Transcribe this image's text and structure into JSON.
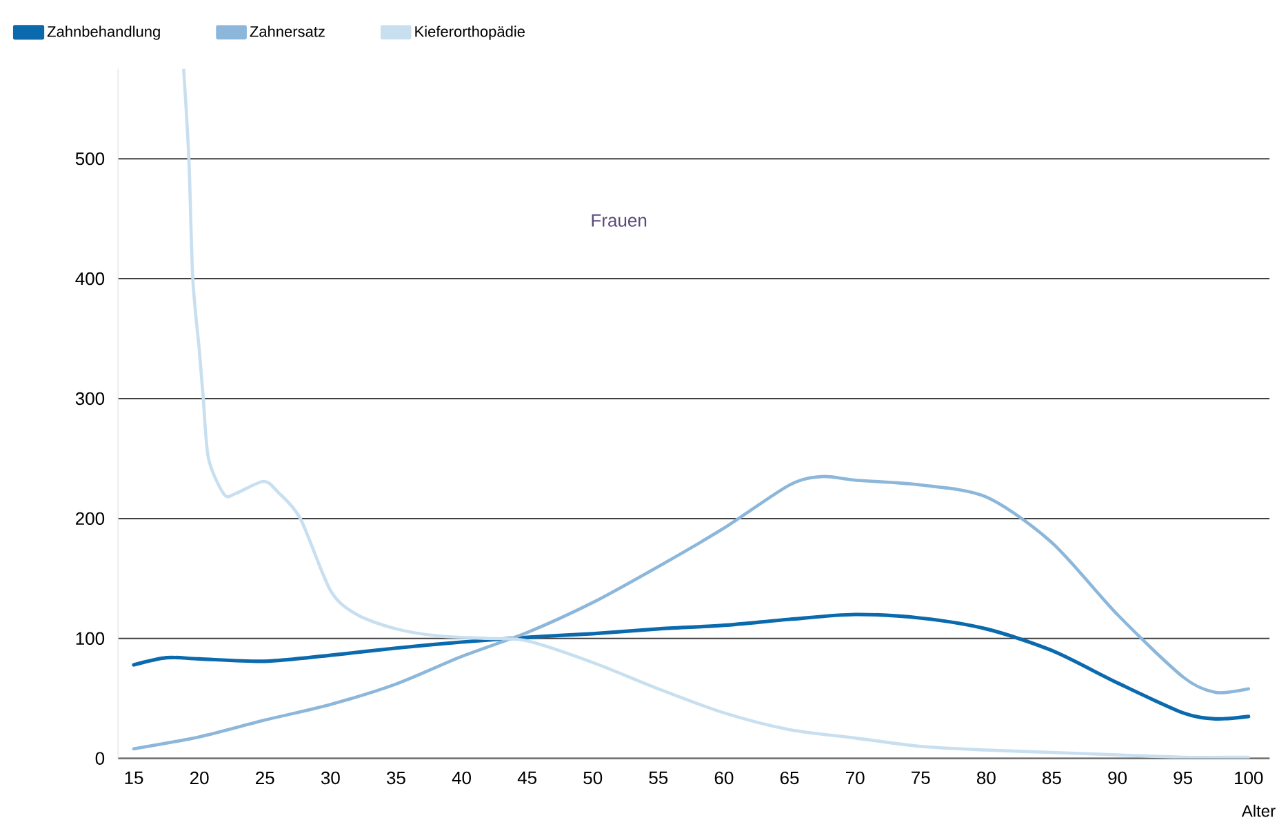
{
  "chart_data": {
    "type": "line",
    "xlabel": "Alter",
    "annotations": [
      "Frauen"
    ],
    "series": [
      {
        "name": "Zahnbehandlung",
        "color": "#0b6aad",
        "x": [
          15,
          17.5,
          20,
          25,
          30,
          35,
          40,
          45,
          50,
          55,
          60,
          65,
          70,
          75,
          80,
          85,
          90,
          95,
          97.5,
          100
        ],
        "values": [
          78,
          84,
          83,
          81,
          86,
          92,
          97,
          101,
          104,
          108,
          111,
          116,
          120,
          117,
          108,
          90,
          63,
          38,
          33,
          35
        ]
      },
      {
        "name": "Zahnersatz",
        "color": "#8cb7da",
        "x": [
          15,
          20,
          25,
          30,
          35,
          40,
          45,
          50,
          55,
          60,
          65,
          67.5,
          70,
          75,
          80,
          85,
          90,
          95,
          97.5,
          100
        ],
        "values": [
          8,
          18,
          32,
          45,
          62,
          85,
          105,
          130,
          160,
          192,
          228,
          235,
          232,
          228,
          218,
          180,
          120,
          68,
          55,
          58
        ]
      },
      {
        "name": "Kieferorthopädie",
        "color": "#c8dff0",
        "x": [
          18.8,
          19.2,
          19.5,
          20,
          20.3,
          20.7,
          21.9,
          22.8,
          24.9,
          26,
          27.7,
          30,
          32,
          35,
          38.3,
          42,
          45,
          50,
          55,
          60,
          65,
          70,
          75,
          80,
          85,
          90,
          95,
          100
        ],
        "values": [
          575,
          500,
          400,
          340,
          300,
          250,
          220,
          221,
          231,
          222,
          200,
          140,
          120,
          108,
          102,
          100,
          98,
          80,
          58,
          38,
          24,
          17,
          10,
          7,
          5,
          3,
          1,
          1
        ]
      }
    ],
    "xlim": [
      13.8,
      101.6
    ],
    "ylim": [
      0,
      575
    ],
    "xticks": [
      15,
      20,
      25,
      30,
      35,
      40,
      45,
      50,
      55,
      60,
      65,
      70,
      75,
      80,
      85,
      90,
      95,
      100
    ],
    "yticks": [
      0,
      100,
      200,
      300,
      400,
      500
    ],
    "grid": "y",
    "legend": "top left",
    "marker": "none",
    "line_style": "solid"
  }
}
